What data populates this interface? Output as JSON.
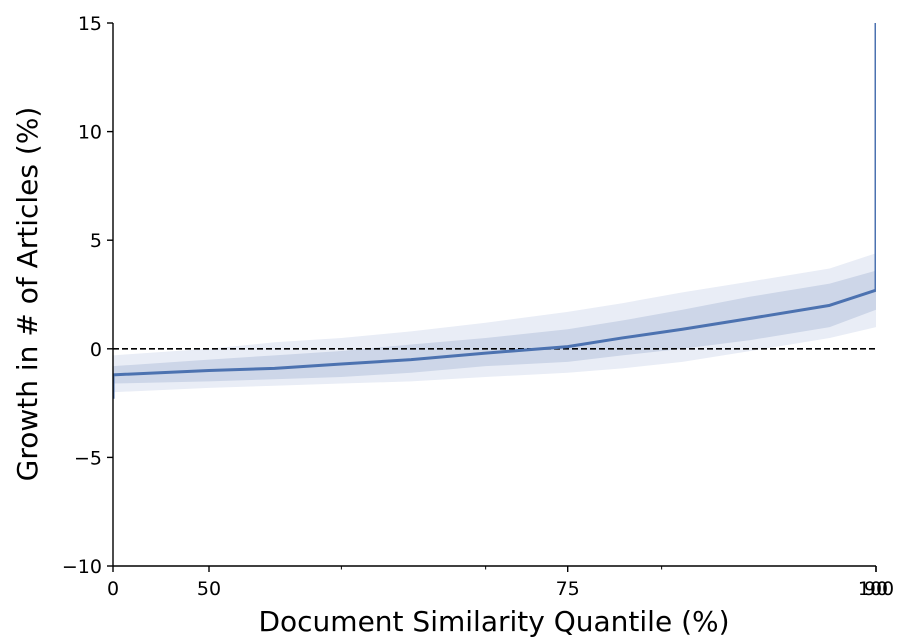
{
  "chart_data": {
    "type": "line",
    "xlabel": "Document Similarity Quantile (%)",
    "ylabel": "Growth in # of Articles (%)",
    "ylim": [
      -10,
      15
    ],
    "x_scale": "logit-like (tail-stretched quantile axis)",
    "x_ticks": [
      {
        "value": 0,
        "label": "0"
      },
      {
        "value": 50,
        "label": "50"
      },
      {
        "value": 75,
        "label": "75"
      },
      {
        "value": 90,
        "label": "90"
      },
      {
        "value": 100,
        "label": "100"
      }
    ],
    "y_ticks": [
      {
        "value": -10,
        "label": "−10"
      },
      {
        "value": -5,
        "label": "−5"
      },
      {
        "value": 0,
        "label": "0"
      },
      {
        "value": 5,
        "label": "5"
      },
      {
        "value": 10,
        "label": "10"
      },
      {
        "value": 15,
        "label": "15"
      }
    ],
    "reference_line": {
      "y": 0,
      "style": "dashed",
      "color": "#000000"
    },
    "series": [
      {
        "color": "#4c72b0",
        "x": [
          0,
          3,
          10,
          20,
          30,
          40,
          50,
          55,
          60,
          65,
          70,
          75,
          78,
          81,
          84,
          87,
          90,
          91,
          92,
          93,
          94,
          95,
          96,
          96.6,
          97.1,
          97.5,
          97.9,
          98.2,
          98.5,
          98.8,
          99.1,
          99.4,
          99.6,
          99.8,
          100
        ],
        "y": [
          -2.3,
          -2.1,
          -1.9,
          -1.6,
          -1.4,
          -1.2,
          -1.0,
          -0.9,
          -0.7,
          -0.5,
          -0.2,
          0.1,
          0.5,
          0.9,
          1.4,
          2.0,
          2.7,
          2.9,
          2.9,
          2.9,
          3.1,
          3.6,
          4.6,
          5.5,
          6.2,
          6.3,
          6.4,
          7.5,
          10.0,
          11.6,
          8.0,
          9.1,
          7.8,
          8.4,
          15.0
        ],
        "band_inner_upper": [
          -1.7,
          -1.6,
          -1.5,
          -1.3,
          -1.0,
          -0.8,
          -0.5,
          -0.3,
          -0.1,
          0.2,
          0.5,
          0.9,
          1.3,
          1.8,
          2.4,
          3.0,
          3.6,
          3.7,
          3.9,
          4.2,
          4.5,
          5.1,
          6.4,
          7.4,
          8.3,
          8.8,
          9.5,
          10.6,
          13.5,
          15.0,
          11.0,
          12.0,
          11.0,
          11.0,
          15.0
        ],
        "band_inner_lower": [
          -3.0,
          -2.7,
          -2.4,
          -2.0,
          -1.8,
          -1.6,
          -1.5,
          -1.4,
          -1.3,
          -1.1,
          -0.8,
          -0.6,
          -0.3,
          0.0,
          0.4,
          1.0,
          1.8,
          1.8,
          1.7,
          1.6,
          1.5,
          2.0,
          2.8,
          3.6,
          4.0,
          4.0,
          3.7,
          4.0,
          6.0,
          7.5,
          3.0,
          5.0,
          4.0,
          3.0,
          -5.0
        ],
        "band_outer_upper": [
          -1.3,
          -1.2,
          -1.1,
          -0.9,
          -0.6,
          -0.3,
          0.0,
          0.3,
          0.5,
          0.8,
          1.2,
          1.7,
          2.1,
          2.6,
          3.1,
          3.7,
          4.4,
          4.6,
          4.9,
          5.4,
          6.1,
          7.0,
          8.9,
          10.0,
          10.8,
          11.2,
          12.0,
          13.5,
          15.0,
          15.0,
          15.0,
          15.0,
          15.0,
          15.0,
          15.0
        ],
        "band_outer_lower": [
          -3.5,
          -3.1,
          -2.8,
          -2.5,
          -2.2,
          -2.0,
          -1.8,
          -1.7,
          -1.6,
          -1.5,
          -1.3,
          -1.1,
          -0.9,
          -0.6,
          -0.1,
          0.5,
          1.0,
          0.8,
          0.6,
          0.2,
          -0.2,
          0.4,
          1.3,
          2.0,
          2.2,
          2.0,
          1.4,
          1.6,
          3.0,
          5.0,
          -1.0,
          0.0,
          -0.5,
          -2.0,
          -10.0
        ]
      }
    ],
    "band_colors": {
      "inner": "#cdd6e8",
      "outer": "#e9edf6"
    },
    "grid": false,
    "legend": "none"
  }
}
